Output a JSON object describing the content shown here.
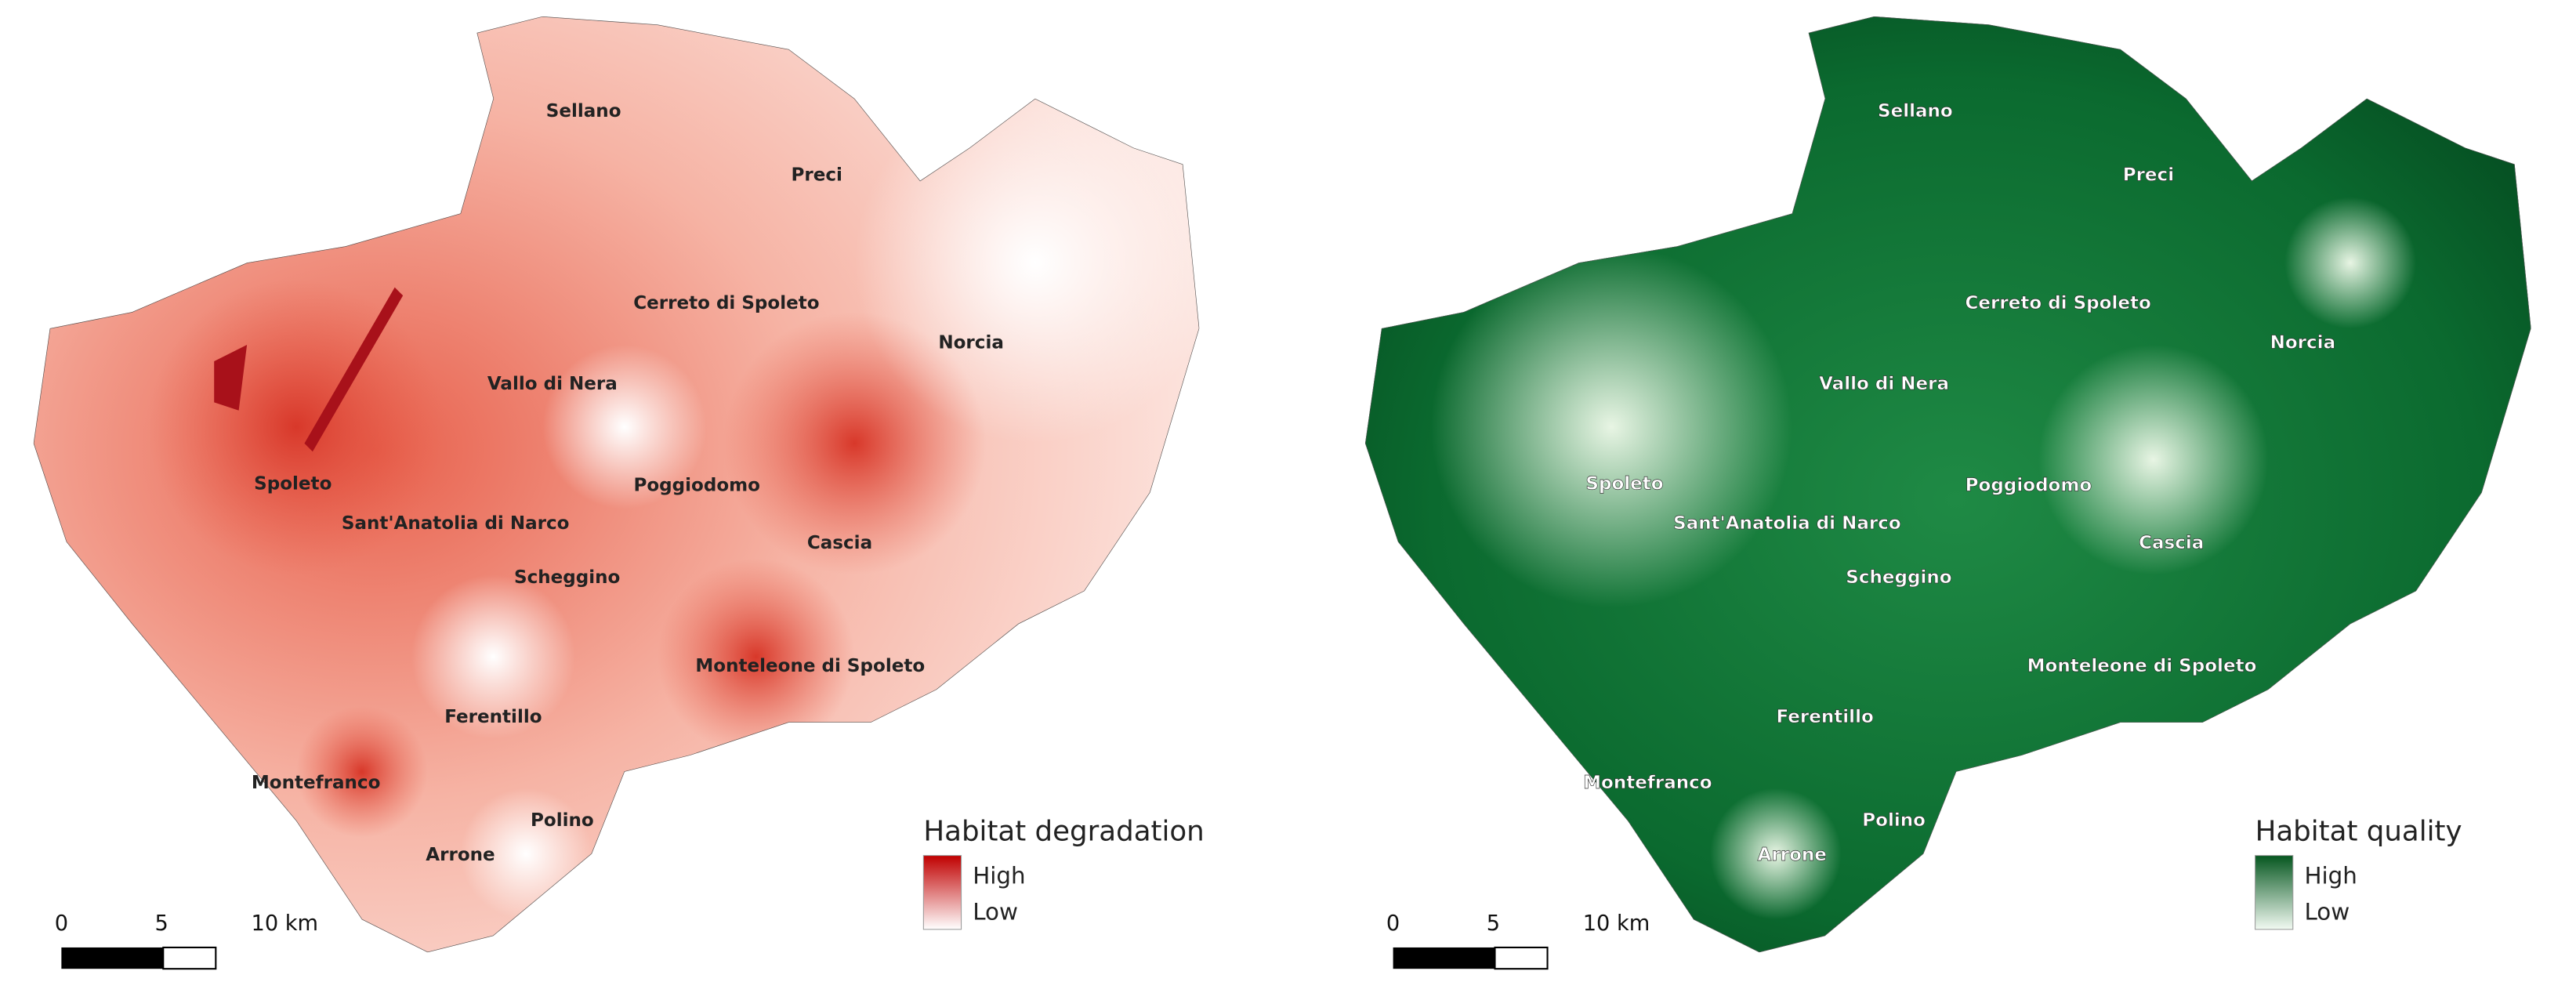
{
  "maps": [
    {
      "places": [
        "Sellano",
        "Preci",
        "Cerreto di Spoleto",
        "Norcia",
        "Vallo di Nera",
        "Spoleto",
        "Poggiodomo",
        "Sant'Anatolia di Narco",
        "Cascia",
        "Scheggino",
        "Monteleone di Spoleto",
        "Ferentillo",
        "Montefranco",
        "Polino",
        "Arrone"
      ],
      "legend": {
        "title": "Habitat degradation",
        "high": "High",
        "low": "Low"
      },
      "scale": [
        "0",
        "5",
        "10 km"
      ]
    },
    {
      "places": [
        "Sellano",
        "Preci",
        "Cerreto di Spoleto",
        "Norcia",
        "Vallo di Nera",
        "Spoleto",
        "Poggiodomo",
        "Sant'Anatolia di Narco",
        "Cascia",
        "Scheggino",
        "Monteleone di Spoleto",
        "Ferentillo",
        "Montefranco",
        "Polino",
        "Arrone"
      ],
      "legend": {
        "title": "Habitat quality",
        "high": "High",
        "low": "Low"
      },
      "scale": [
        "0",
        "5",
        "10 km"
      ]
    }
  ]
}
